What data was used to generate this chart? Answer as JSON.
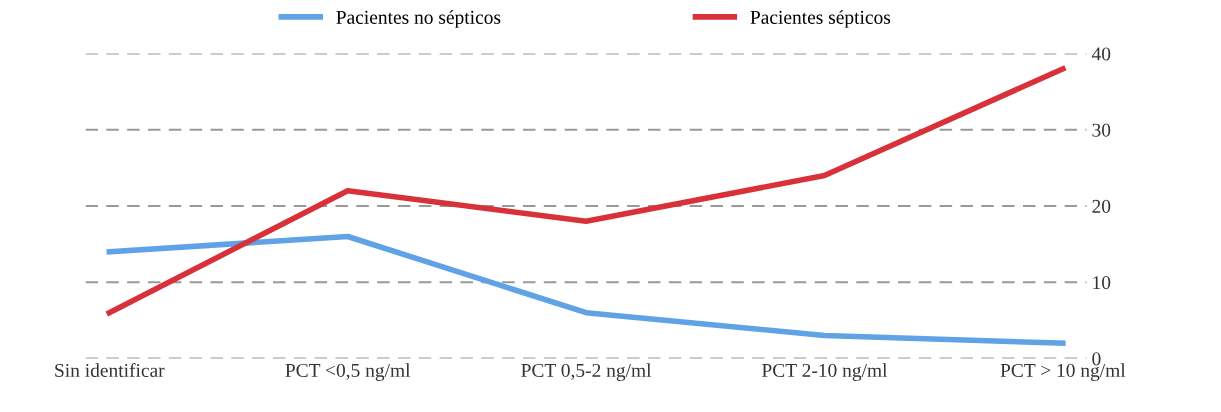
{
  "chart_data": {
    "type": "line",
    "categories": [
      "Sin identificar",
      "PCT <0,5 ng/ml",
      "PCT 0,5-2 ng/ml",
      "PCT 2-10 ng/ml",
      "PCT > 10 ng/ml"
    ],
    "series": [
      {
        "name": "Pacientes no sépticos",
        "color": "#5fa3e6",
        "values": [
          14,
          16,
          6,
          3,
          2
        ]
      },
      {
        "name": "Pacientes sépticos",
        "color": "#d8313a",
        "values": [
          6,
          22,
          18,
          24,
          38
        ]
      }
    ],
    "ylim": [
      0,
      40
    ],
    "yticks": [
      0,
      10,
      20,
      30,
      40
    ],
    "grid": "y",
    "legend": "top",
    "marker": "none",
    "line_style": "solid"
  }
}
